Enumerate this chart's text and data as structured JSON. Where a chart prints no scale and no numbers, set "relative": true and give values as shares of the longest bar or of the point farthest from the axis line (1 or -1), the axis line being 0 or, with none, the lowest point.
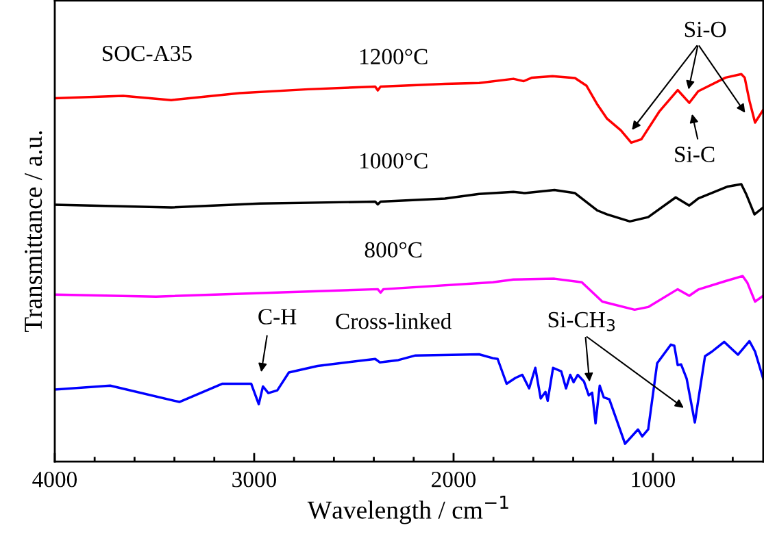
{
  "chart_data": {
    "type": "line",
    "title": "SOC-A35",
    "xlabel": "Wavelength / cm$^{−1}$",
    "ylabel": "Transmittance / a.u.",
    "relative": true,
    "xlim": [
      4000,
      447
    ],
    "xticks": [
      4000,
      {
        "value": 3800,
        "label": null
      },
      {
        "value": 3600,
        "label": null
      },
      {
        "value": 3400,
        "label": null
      },
      {
        "value": 3200,
        "label": null
      },
      3000,
      {
        "value": 2800,
        "label": null
      },
      {
        "value": 2600,
        "label": null
      },
      {
        "value": 2400,
        "label": null
      },
      {
        "value": 2200,
        "label": null
      },
      2000,
      {
        "value": 1800,
        "label": null
      },
      {
        "value": 1600,
        "label": null
      },
      {
        "value": 1400,
        "label": null
      },
      {
        "value": 1200,
        "label": null
      },
      1000,
      {
        "value": 800,
        "label": null
      },
      {
        "value": 600,
        "label": null
      }
    ],
    "tick_labels": "x",
    "grid": false,
    "legend": false,
    "marker": "none",
    "line_style": "solid",
    "series": [
      {
        "name": "1200°C",
        "color": "#ff0000",
        "x": [
          4000,
          3657,
          3416,
          3073,
          2730,
          2393,
          2380,
          2366,
          2043,
          1872,
          1700,
          1648,
          1607,
          1504,
          1391,
          1333,
          1278,
          1230,
          1161,
          1109,
          1058,
          969,
          876,
          818,
          773,
          636,
          557,
          540,
          516,
          488,
          447
        ],
        "values": [
          0.938,
          0.944,
          0.933,
          0.951,
          0.961,
          0.968,
          0.958,
          0.968,
          0.975,
          0.977,
          0.988,
          0.982,
          0.991,
          0.995,
          0.99,
          0.97,
          0.921,
          0.885,
          0.855,
          0.823,
          0.832,
          0.903,
          0.959,
          0.926,
          0.956,
          0.991,
          1.0,
          0.991,
          0.931,
          0.875,
          0.908
        ]
      },
      {
        "name": "1000°C",
        "color": "#000000",
        "x": [
          4000,
          3416,
          2970,
          2393,
          2380,
          2366,
          2043,
          1872,
          1700,
          1642,
          1494,
          1391,
          1278,
          1230,
          1116,
          1024,
          886,
          818,
          773,
          625,
          557,
          533,
          491,
          447
        ],
        "values": [
          0.663,
          0.656,
          0.666,
          0.671,
          0.664,
          0.671,
          0.679,
          0.691,
          0.696,
          0.693,
          0.701,
          0.693,
          0.648,
          0.638,
          0.62,
          0.631,
          0.682,
          0.661,
          0.679,
          0.71,
          0.716,
          0.691,
          0.638,
          0.656
        ]
      },
      {
        "name": "800°C",
        "color": "#ff00ff",
        "x": [
          4000,
          3492,
          2380,
          2366,
          2352,
          1803,
          1700,
          1494,
          1357,
          1254,
          1092,
          1024,
          876,
          818,
          773,
          636,
          550,
          526,
          488,
          447
        ],
        "values": [
          0.431,
          0.426,
          0.445,
          0.436,
          0.445,
          0.463,
          0.47,
          0.472,
          0.463,
          0.413,
          0.392,
          0.399,
          0.445,
          0.428,
          0.444,
          0.466,
          0.479,
          0.461,
          0.413,
          0.428
        ]
      },
      {
        "name": "Cross-linked",
        "color": "#0000ff",
        "x": [
          4000,
          3722,
          3375,
          3159,
          3015,
          2977,
          2956,
          2929,
          2884,
          2826,
          2682,
          2393,
          2369,
          2277,
          2191,
          1872,
          1803,
          1779,
          1734,
          1690,
          1655,
          1621,
          1590,
          1563,
          1539,
          1528,
          1501,
          1460,
          1436,
          1415,
          1398,
          1377,
          1346,
          1322,
          1305,
          1288,
          1267,
          1247,
          1219,
          1140,
          1075,
          1054,
          1024,
          979,
          910,
          893,
          876,
          859,
          831,
          790,
          739,
          704,
          643,
          574,
          516,
          488,
          447
        ],
        "values": [
          0.186,
          0.196,
          0.154,
          0.201,
          0.201,
          0.148,
          0.194,
          0.177,
          0.184,
          0.23,
          0.247,
          0.265,
          0.256,
          0.262,
          0.274,
          0.277,
          0.267,
          0.265,
          0.201,
          0.216,
          0.224,
          0.189,
          0.242,
          0.163,
          0.18,
          0.157,
          0.242,
          0.233,
          0.189,
          0.224,
          0.205,
          0.224,
          0.207,
          0.171,
          0.178,
          0.099,
          0.196,
          0.166,
          0.161,
          0.046,
          0.083,
          0.065,
          0.083,
          0.254,
          0.302,
          0.299,
          0.249,
          0.251,
          0.214,
          0.101,
          0.272,
          0.284,
          0.309,
          0.276,
          0.311,
          0.284,
          0.214
        ]
      }
    ],
    "annotations": [
      "Si-O",
      "Si-C",
      "C-H",
      "Si-CH$_{3}$"
    ]
  }
}
